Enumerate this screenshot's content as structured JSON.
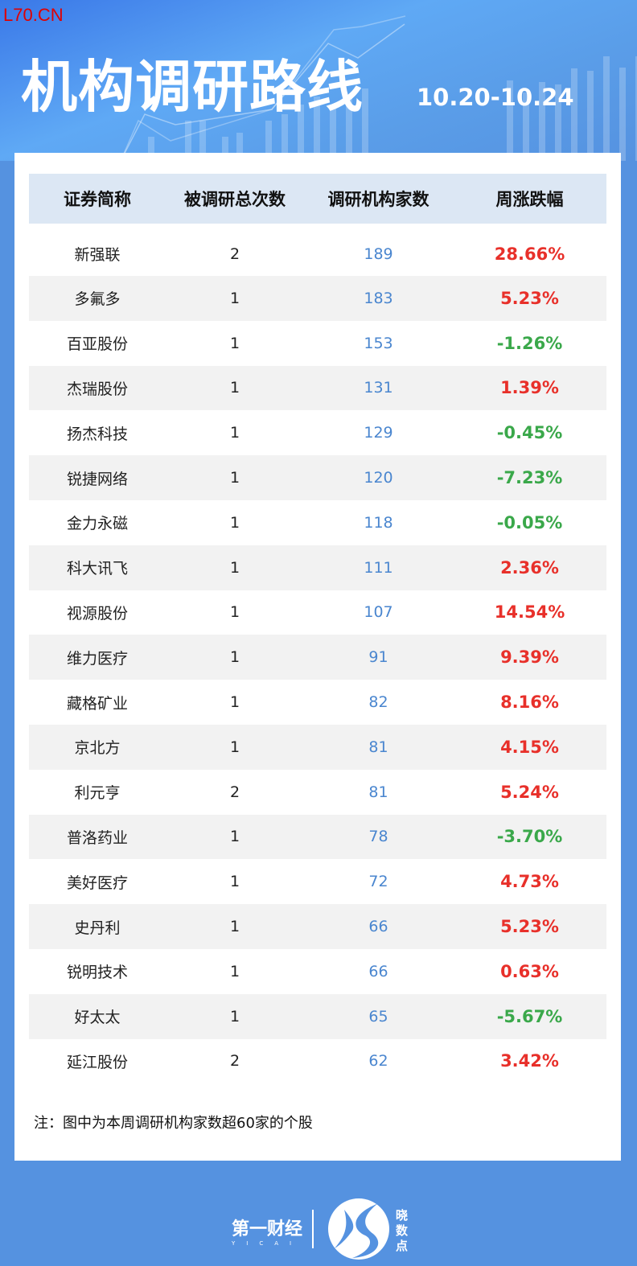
{
  "watermark": "L70.CN",
  "header": {
    "title": "机构调研路线",
    "date_range": "10.20-10.24"
  },
  "table": {
    "columns": [
      "证券简称",
      "被调研总次数",
      "调研机构家数",
      "周涨跌幅"
    ],
    "rows": [
      [
        "新强联",
        "2",
        "189",
        "28.66%"
      ],
      [
        "多氟多",
        "1",
        "183",
        "5.23%"
      ],
      [
        "百亚股份",
        "1",
        "153",
        "-1.26%"
      ],
      [
        "杰瑞股份",
        "1",
        "131",
        "1.39%"
      ],
      [
        "扬杰科技",
        "1",
        "129",
        "-0.45%"
      ],
      [
        "锐捷网络",
        "1",
        "120",
        "-7.23%"
      ],
      [
        "金力永磁",
        "1",
        "118",
        "-0.05%"
      ],
      [
        "科大讯飞",
        "1",
        "111",
        "2.36%"
      ],
      [
        "视源股份",
        "1",
        "107",
        "14.54%"
      ],
      [
        "维力医疗",
        "1",
        "91",
        "9.39%"
      ],
      [
        "藏格矿业",
        "1",
        "82",
        "8.16%"
      ],
      [
        "京北方",
        "1",
        "81",
        "4.15%"
      ],
      [
        "利元亨",
        "2",
        "81",
        "5.24%"
      ],
      [
        "普洛药业",
        "1",
        "78",
        "-3.70%"
      ],
      [
        "美好医疗",
        "1",
        "72",
        "4.73%"
      ],
      [
        "史丹利",
        "1",
        "66",
        "5.23%"
      ],
      [
        "锐明技术",
        "1",
        "66",
        "0.63%"
      ],
      [
        "好太太",
        "1",
        "65",
        "-5.67%"
      ],
      [
        "延江股份",
        "2",
        "62",
        "3.42%"
      ]
    ]
  },
  "note": "注：图中为本周调研机构家数超60家的个股",
  "footer": {
    "brand1": "第一财经",
    "brand1_sub": "YICAI",
    "brand2": "晓数点"
  },
  "colors": {
    "background": "#5592e0",
    "up": "#e8302a",
    "down": "#3aa84a",
    "count": "#4a86cf",
    "header_row": "#dce7f4"
  }
}
